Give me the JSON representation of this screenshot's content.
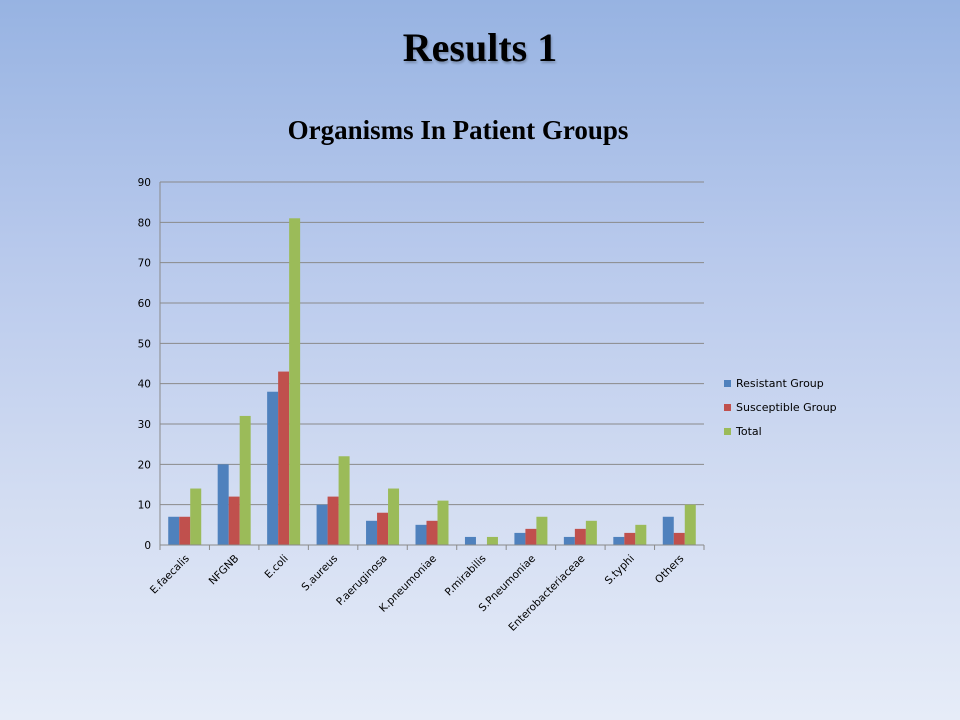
{
  "slide": {
    "title": "Results 1"
  },
  "chart_data": {
    "type": "bar",
    "title": "Organisms In Patient Groups",
    "xlabel": "",
    "ylabel": "",
    "ylim": [
      0,
      90
    ],
    "yticks": [
      0,
      10,
      20,
      30,
      40,
      50,
      60,
      70,
      80,
      90
    ],
    "grid": true,
    "legend_position": "right",
    "categories": [
      "E.faecalis",
      "NFGNB",
      "E.coli",
      "S.aureus",
      "P.aeruginosa",
      "K.pneumoniae",
      "P.mirabilis",
      "S.Pneumoniae",
      "Enterobacteriaceae",
      "S.typhi",
      "Others"
    ],
    "series": [
      {
        "name": "Resistant Group",
        "color": "#4f81bd",
        "values": [
          7,
          20,
          38,
          10,
          6,
          5,
          2,
          3,
          2,
          2,
          7
        ]
      },
      {
        "name": "Susceptible Group",
        "color": "#c0504d",
        "values": [
          7,
          12,
          43,
          12,
          8,
          6,
          0,
          4,
          4,
          3,
          3
        ]
      },
      {
        "name": "Total",
        "color": "#9bbb59",
        "values": [
          14,
          32,
          81,
          22,
          14,
          11,
          2,
          7,
          6,
          5,
          10
        ]
      }
    ]
  }
}
